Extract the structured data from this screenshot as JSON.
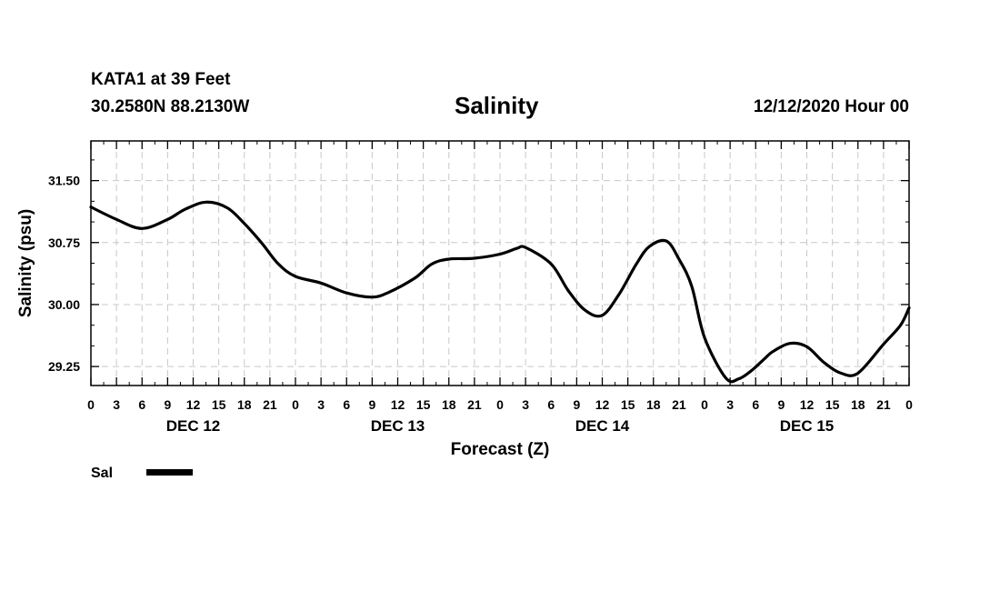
{
  "header": {
    "station": "KATA1 at 39 Feet",
    "coords": "30.2580N 88.2130W",
    "title": "Salinity",
    "issued": "12/12/2020 Hour 00"
  },
  "chart_data": {
    "type": "line",
    "title": "Salinity",
    "xlabel": "Forecast (Z)",
    "ylabel": "Salinity (psu)",
    "x_unit": "forecast hour",
    "xlim": [
      0,
      96
    ],
    "ylim": [
      29.02,
      31.98
    ],
    "y_ticks": [
      29.25,
      30.0,
      30.75,
      31.5
    ],
    "y_tick_labels": [
      "29.25",
      "30.00",
      "30.75",
      "31.50"
    ],
    "x_ticks": [
      0,
      3,
      6,
      9,
      12,
      15,
      18,
      21,
      24,
      27,
      30,
      33,
      36,
      39,
      42,
      45,
      48,
      51,
      54,
      57,
      60,
      63,
      66,
      69,
      72,
      75,
      78,
      81,
      84,
      87,
      90,
      93,
      96
    ],
    "x_tick_labels": [
      "0",
      "3",
      "6",
      "9",
      "12",
      "15",
      "18",
      "21",
      "0",
      "3",
      "6",
      "9",
      "12",
      "15",
      "18",
      "21",
      "0",
      "3",
      "6",
      "9",
      "12",
      "15",
      "18",
      "21",
      "0",
      "3",
      "6",
      "9",
      "12",
      "15",
      "18",
      "21",
      "0"
    ],
    "day_labels": [
      {
        "label": "DEC 12",
        "x": 12
      },
      {
        "label": "DEC 13",
        "x": 36
      },
      {
        "label": "DEC 14",
        "x": 60
      },
      {
        "label": "DEC 15",
        "x": 84
      }
    ],
    "grid": true,
    "legend": [
      {
        "label": "Sal",
        "color": "#000000"
      }
    ],
    "series": [
      {
        "name": "Sal",
        "color": "#000000",
        "x": [
          0,
          3,
          6,
          9,
          11,
          13.5,
          16,
          18,
          20,
          22,
          24,
          27,
          30,
          33,
          35,
          38,
          40,
          42,
          45,
          48,
          50,
          51,
          54,
          56,
          58,
          60,
          62,
          64,
          65.5,
          67.5,
          69,
          70.5,
          72,
          74.5,
          76,
          77.5,
          79,
          80,
          82,
          84,
          86,
          88,
          90,
          93,
          95,
          96
        ],
        "values": [
          31.18,
          31.03,
          30.92,
          31.03,
          31.15,
          31.24,
          31.17,
          30.98,
          30.75,
          30.49,
          30.34,
          30.26,
          30.14,
          30.09,
          30.15,
          30.32,
          30.49,
          30.55,
          30.56,
          30.61,
          30.68,
          30.69,
          30.49,
          30.17,
          29.93,
          29.87,
          30.13,
          30.49,
          30.7,
          30.77,
          30.55,
          30.22,
          29.6,
          29.11,
          29.1,
          29.2,
          29.34,
          29.43,
          29.53,
          29.49,
          29.3,
          29.17,
          29.17,
          29.52,
          29.75,
          29.96
        ]
      }
    ]
  }
}
